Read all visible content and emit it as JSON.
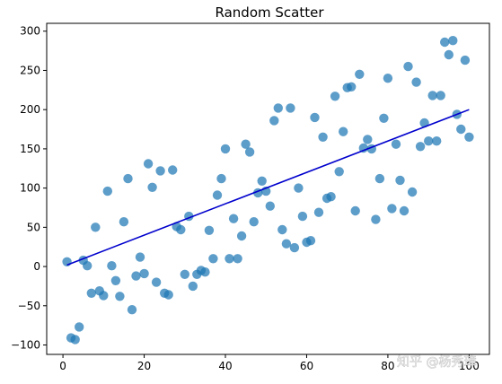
{
  "chart_data": {
    "type": "scatter",
    "title": "Random Scatter",
    "xlabel": "",
    "ylabel": "",
    "xlim": [
      -4,
      105
    ],
    "ylim": [
      -112,
      310
    ],
    "xticks": [
      0,
      20,
      40,
      60,
      80,
      100
    ],
    "yticks": [
      -100,
      -50,
      0,
      50,
      100,
      150,
      200,
      250,
      300
    ],
    "grid": false,
    "point_color": "#1f77b4",
    "line_color": "#0000cd",
    "points": [
      [
        1,
        6
      ],
      [
        2,
        -91
      ],
      [
        3,
        -93
      ],
      [
        4,
        -77
      ],
      [
        5,
        8
      ],
      [
        6,
        1
      ],
      [
        7,
        -34
      ],
      [
        8,
        50
      ],
      [
        9,
        -31
      ],
      [
        10,
        -37
      ],
      [
        11,
        96
      ],
      [
        12,
        1
      ],
      [
        13,
        -18
      ],
      [
        14,
        -38
      ],
      [
        15,
        57
      ],
      [
        16,
        112
      ],
      [
        17,
        -55
      ],
      [
        18,
        -12
      ],
      [
        19,
        12
      ],
      [
        20,
        -9
      ],
      [
        21,
        131
      ],
      [
        22,
        101
      ],
      [
        23,
        -20
      ],
      [
        24,
        122
      ],
      [
        25,
        -34
      ],
      [
        26,
        -36
      ],
      [
        27,
        123
      ],
      [
        28,
        51
      ],
      [
        29,
        47
      ],
      [
        30,
        -10
      ],
      [
        31,
        64
      ],
      [
        32,
        -25
      ],
      [
        33,
        -10
      ],
      [
        34,
        -5
      ],
      [
        35,
        -7
      ],
      [
        36,
        46
      ],
      [
        37,
        10
      ],
      [
        38,
        91
      ],
      [
        39,
        112
      ],
      [
        40,
        150
      ],
      [
        41,
        10
      ],
      [
        42,
        61
      ],
      [
        43,
        10
      ],
      [
        44,
        39
      ],
      [
        45,
        156
      ],
      [
        46,
        146
      ],
      [
        47,
        57
      ],
      [
        48,
        94
      ],
      [
        49,
        109
      ],
      [
        50,
        96
      ],
      [
        51,
        77
      ],
      [
        52,
        186
      ],
      [
        53,
        202
      ],
      [
        54,
        47
      ],
      [
        55,
        29
      ],
      [
        56,
        202
      ],
      [
        57,
        24
      ],
      [
        58,
        100
      ],
      [
        59,
        64
      ],
      [
        60,
        31
      ],
      [
        61,
        33
      ],
      [
        62,
        190
      ],
      [
        63,
        69
      ],
      [
        64,
        165
      ],
      [
        65,
        87
      ],
      [
        66,
        89
      ],
      [
        67,
        217
      ],
      [
        68,
        121
      ],
      [
        69,
        172
      ],
      [
        70,
        228
      ],
      [
        71,
        229
      ],
      [
        72,
        71
      ],
      [
        73,
        245
      ],
      [
        74,
        151
      ],
      [
        75,
        162
      ],
      [
        76,
        150
      ],
      [
        77,
        60
      ],
      [
        78,
        112
      ],
      [
        79,
        189
      ],
      [
        80,
        240
      ],
      [
        81,
        74
      ],
      [
        82,
        156
      ],
      [
        83,
        110
      ],
      [
        84,
        71
      ],
      [
        85,
        255
      ],
      [
        86,
        95
      ],
      [
        87,
        235
      ],
      [
        88,
        153
      ],
      [
        89,
        183
      ],
      [
        90,
        160
      ],
      [
        91,
        218
      ],
      [
        92,
        160
      ],
      [
        93,
        218
      ],
      [
        94,
        286
      ],
      [
        95,
        270
      ],
      [
        96,
        288
      ],
      [
        97,
        194
      ],
      [
        98,
        175
      ],
      [
        99,
        263
      ],
      [
        100,
        165
      ]
    ],
    "fit_line": {
      "x": [
        1,
        100
      ],
      "y": [
        2,
        200
      ]
    }
  },
  "watermark": "知乎 @杨秀璋"
}
